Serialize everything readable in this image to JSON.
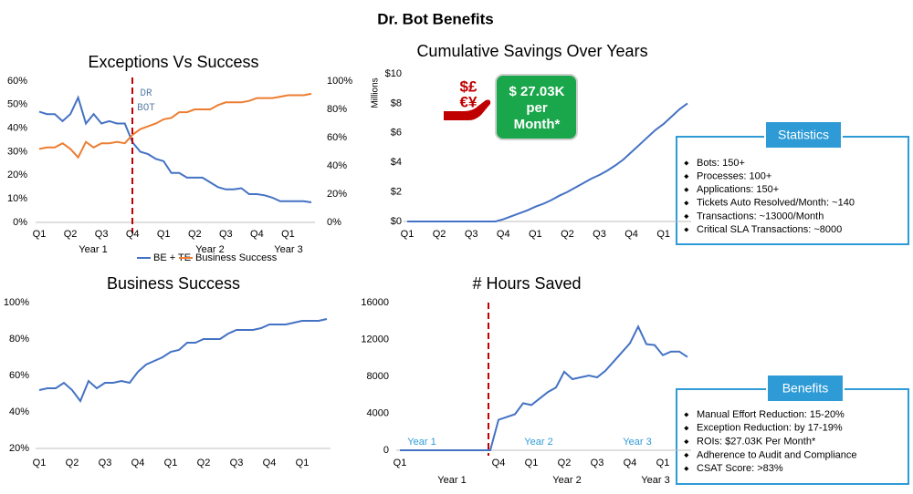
{
  "title": "Dr. Bot Benefits",
  "chart_data": [
    {
      "type": "line",
      "title": "Exceptions Vs Success",
      "categories": [
        "Q1",
        null,
        null,
        null,
        "Q2",
        null,
        null,
        null,
        "Q3",
        null,
        null,
        null,
        "Q4",
        null,
        null,
        null,
        "Q1",
        null,
        null,
        null,
        "Q2",
        null,
        null,
        null,
        "Q3",
        null,
        null,
        null,
        "Q4",
        null,
        null,
        null,
        "Q1",
        null,
        null,
        null
      ],
      "group_labels": [
        "Year 1",
        "Year 2",
        "Year 3"
      ],
      "annotation": [
        "DR",
        "BOT"
      ],
      "ylim": [
        0,
        60
      ],
      "yticks": [
        {
          "value": 0,
          "label": "0%"
        },
        {
          "value": 10,
          "label": "10%"
        },
        {
          "value": 20,
          "label": "20%"
        },
        {
          "value": 30,
          "label": "30%"
        },
        {
          "value": 40,
          "label": "40%"
        },
        {
          "value": 50,
          "label": "50%"
        },
        {
          "value": 60,
          "label": "60%"
        }
      ],
      "y2lim": [
        0,
        100
      ],
      "y2ticks": [
        {
          "value": 0,
          "label": "0%"
        },
        {
          "value": 20,
          "label": "20%"
        },
        {
          "value": 40,
          "label": "40%"
        },
        {
          "value": 60,
          "label": "60%"
        },
        {
          "value": 80,
          "label": "80%"
        },
        {
          "value": 100,
          "label": "100%"
        }
      ],
      "legend": "bottom",
      "series": [
        {
          "name": "BE + TE",
          "color": "#4472c4",
          "values": [
            47,
            46,
            46,
            43,
            46,
            53,
            42,
            46,
            42,
            43,
            42,
            42,
            34,
            30,
            29,
            27,
            26,
            21,
            21,
            19,
            19,
            19,
            17,
            15,
            14,
            14,
            14.5,
            12,
            12,
            11.5,
            10.5,
            9,
            9,
            9,
            9,
            8.5
          ]
        },
        {
          "name": "Business Success",
          "color": "#ed7d31",
          "axis": "y2",
          "values": [
            52,
            53,
            53,
            56,
            52,
            46,
            57,
            53,
            56,
            56,
            57,
            56,
            62,
            66,
            68,
            70,
            73,
            74,
            78,
            78,
            80,
            80,
            80,
            83,
            85,
            85,
            85,
            86,
            88,
            88,
            88,
            89,
            90,
            90,
            90,
            91
          ]
        }
      ]
    },
    {
      "type": "line",
      "title": "Cumulative Savings Over Years",
      "y_label": "Millions",
      "categories": [
        "Q1",
        null,
        null,
        null,
        "Q2",
        null,
        null,
        null,
        "Q3",
        null,
        null,
        null,
        "Q4",
        null,
        null,
        null,
        "Q1",
        null,
        null,
        null,
        "Q2",
        null,
        null,
        null,
        "Q3",
        null,
        null,
        null,
        "Q4",
        null,
        null,
        null,
        "Q1",
        null,
        null,
        null
      ],
      "ylim": [
        0,
        10
      ],
      "yticks": [
        {
          "value": 0,
          "label": "$0"
        },
        {
          "value": 2,
          "label": "$2"
        },
        {
          "value": 4,
          "label": "$4"
        },
        {
          "value": 6,
          "label": "$6"
        },
        {
          "value": 8,
          "label": "$8"
        },
        {
          "value": 10,
          "label": "$10"
        }
      ],
      "color": "#4472c4",
      "values": [
        0,
        0,
        0,
        0,
        0,
        0,
        0,
        0,
        0,
        0,
        0,
        0,
        0.15,
        0.35,
        0.55,
        0.75,
        1.0,
        1.2,
        1.45,
        1.75,
        2.0,
        2.3,
        2.6,
        2.9,
        3.15,
        3.45,
        3.8,
        4.2,
        4.7,
        5.2,
        5.7,
        6.2,
        6.6,
        7.1,
        7.6,
        8.0
      ]
    },
    {
      "type": "line",
      "title": "Business Success",
      "categories": [
        "Q1",
        null,
        null,
        null,
        "Q2",
        null,
        null,
        null,
        "Q3",
        null,
        null,
        null,
        "Q4",
        null,
        null,
        null,
        "Q1",
        null,
        null,
        null,
        "Q2",
        null,
        null,
        null,
        "Q3",
        null,
        null,
        null,
        "Q4",
        null,
        null,
        null,
        "Q1",
        null,
        null,
        null
      ],
      "ylim": [
        20,
        100
      ],
      "yticks": [
        {
          "value": 20,
          "label": "20%"
        },
        {
          "value": 40,
          "label": "40%"
        },
        {
          "value": 60,
          "label": "60%"
        },
        {
          "value": 80,
          "label": "80%"
        },
        {
          "value": 100,
          "label": "100%"
        }
      ],
      "color": "#4472c4",
      "values": [
        52,
        53,
        53,
        56,
        52,
        46,
        57,
        53,
        56,
        56,
        57,
        56,
        62,
        66,
        68,
        70,
        73,
        74,
        78,
        78,
        80,
        80,
        80,
        83,
        85,
        85,
        85,
        86,
        88,
        88,
        88,
        89,
        90,
        90,
        90,
        91
      ]
    },
    {
      "type": "line",
      "title": "# Hours Saved",
      "categories": [
        "Q1",
        null,
        null,
        null,
        null,
        null,
        null,
        null,
        null,
        null,
        null,
        null,
        "Q4",
        null,
        null,
        null,
        "Q1",
        null,
        null,
        null,
        "Q2",
        null,
        null,
        null,
        "Q3",
        null,
        null,
        null,
        "Q4",
        null,
        null,
        null,
        "Q1",
        null,
        null,
        null
      ],
      "group_labels": [
        "Year 1",
        "Year 2",
        "Year 3"
      ],
      "annotations": [
        "Year 1",
        "Year 2",
        "Year 3"
      ],
      "ylim": [
        0,
        16000
      ],
      "yticks": [
        0,
        4000,
        8000,
        12000,
        16000
      ],
      "color": "#4472c4",
      "values": [
        0,
        0,
        0,
        0,
        0,
        0,
        0,
        0,
        0,
        0,
        0,
        0,
        3300,
        3600,
        3900,
        5100,
        4900,
        5600,
        6300,
        6800,
        8500,
        7700,
        7900,
        8100,
        7900,
        8600,
        9600,
        10600,
        11600,
        13400,
        11500,
        11400,
        10300,
        10700,
        10700,
        10100
      ]
    }
  ],
  "badge": {
    "icon": [
      "$£",
      "€¥"
    ],
    "lines": [
      "$ 27.03K",
      "per",
      "Month*"
    ]
  },
  "statistics": {
    "title": "Statistics",
    "items": [
      "Bots: 150+",
      "Processes: 100+",
      "Applications: 150+",
      "Tickets Auto Resolved/Month: ~140",
      "Transactions: ~13000/Month",
      "Critical SLA Transactions: ~8000"
    ]
  },
  "benefits": {
    "title": "Benefits",
    "items": [
      "Manual Effort Reduction: 15-20%",
      "Exception Reduction: by 17-19%",
      "ROIs: $27.03K Per Month*",
      "Adherence to Audit and Compliance",
      "CSAT Score: >83%"
    ]
  }
}
